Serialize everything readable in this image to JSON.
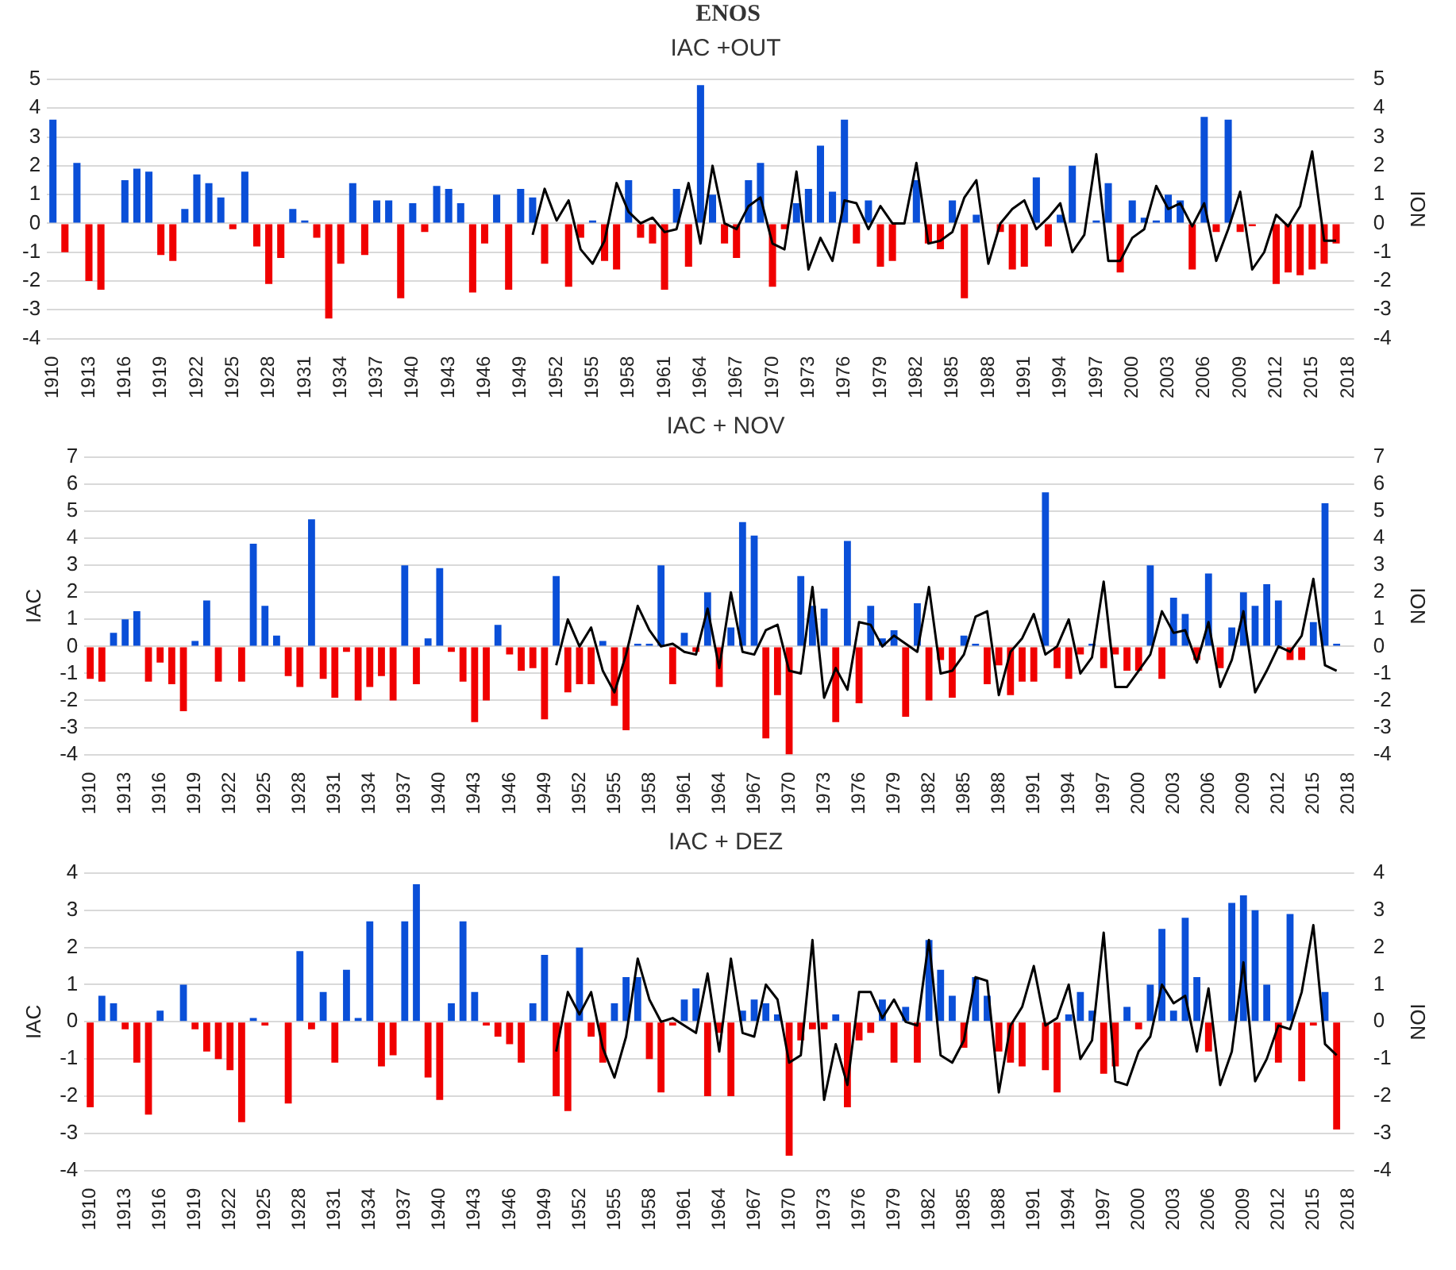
{
  "chart_data": [
    {
      "type": "bar",
      "title": "IAC +OUT",
      "annotations": [
        "ENOS"
      ],
      "y2label": "ION",
      "grid": "y",
      "marker": "none",
      "categories": [
        "1910",
        null,
        null,
        "1913",
        null,
        null,
        "1916",
        null,
        null,
        "1919",
        null,
        null,
        "1922",
        null,
        null,
        "1925",
        null,
        null,
        "1928",
        null,
        null,
        "1931",
        null,
        null,
        "1934",
        null,
        null,
        "1937",
        null,
        null,
        "1940",
        null,
        null,
        "1943",
        null,
        null,
        "1946",
        null,
        null,
        "1949",
        null,
        null,
        "1952",
        null,
        null,
        "1955",
        null,
        null,
        "1958",
        null,
        null,
        "1961",
        null,
        null,
        "1964",
        null,
        null,
        "1967",
        null,
        null,
        "1970",
        null,
        null,
        "1973",
        null,
        null,
        "1976",
        null,
        null,
        "1979",
        null,
        null,
        "1982",
        null,
        null,
        "1985",
        null,
        null,
        "1988",
        null,
        null,
        "1991",
        null,
        null,
        "1994",
        null,
        null,
        "1997",
        null,
        null,
        "2000",
        null,
        null,
        "2003",
        null,
        null,
        "2006",
        null,
        null,
        "2009",
        null,
        null,
        "2012",
        null,
        null,
        "2015",
        null,
        null,
        "2018"
      ],
      "ylim": [
        -4,
        5
      ],
      "yticks": [
        -4,
        -3,
        -2,
        -1,
        0,
        1,
        2,
        3,
        4,
        5
      ],
      "y2lim": [
        -4,
        5
      ],
      "y2ticks": [
        -4,
        -3,
        -2,
        -1,
        0,
        1,
        2,
        3,
        4,
        5
      ],
      "series": [
        {
          "values": [
            3.6,
            -1.0,
            2.1,
            -2.0,
            -2.3,
            0,
            1.5,
            1.9,
            1.8,
            -1.1,
            -1.3,
            0.5,
            1.7,
            1.4,
            0.9,
            -0.2,
            1.8,
            -0.8,
            -2.1,
            -1.2,
            0.5,
            0.1,
            -0.5,
            -3.3,
            -1.4,
            1.4,
            -1.1,
            0.8,
            0.8,
            -2.6,
            0.7,
            -0.3,
            1.3,
            1.2,
            0.7,
            -2.4,
            -0.7,
            1.0,
            -2.3,
            1.2,
            0.9,
            -1.4,
            0,
            -2.2,
            -0.5,
            0.1,
            -1.3,
            -1.6,
            1.5,
            -0.5,
            -0.7,
            -2.3,
            1.2,
            -1.5,
            4.8,
            1.0,
            -0.7,
            -1.2,
            1.5,
            2.1,
            -2.2,
            -0.2,
            0.7,
            1.2,
            2.7,
            1.1,
            3.6,
            -0.7,
            0.8,
            -1.5,
            -1.3,
            0,
            1.5,
            -0.7,
            -0.9,
            0.8,
            -2.6,
            0.3,
            0,
            -0.3,
            -1.6,
            -1.5,
            1.6,
            -0.8,
            0.3,
            2.0,
            0,
            0.1,
            1.4,
            -1.7,
            0.8,
            0.2,
            0.1,
            1.0,
            0.8,
            -1.6,
            3.7,
            -0.3,
            3.6,
            -0.3,
            -0.1,
            0,
            -2.1,
            -1.7,
            -1.8,
            -1.6,
            -1.4,
            -0.7,
            null
          ],
          "colors": [
            "#0a4fd8",
            "#f00000",
            "#0a4fd8",
            "#f00000",
            "#f00000",
            "#0a4fd8",
            "#0a4fd8",
            "#0a4fd8",
            "#0a4fd8",
            "#f00000",
            "#f00000",
            "#0a4fd8",
            "#0a4fd8",
            "#0a4fd8",
            "#0a4fd8",
            "#f00000",
            "#0a4fd8",
            "#f00000",
            "#f00000",
            "#f00000",
            "#0a4fd8",
            "#0a4fd8",
            "#f00000",
            "#f00000",
            "#f00000",
            "#0a4fd8",
            "#f00000",
            "#0a4fd8",
            "#0a4fd8",
            "#f00000",
            "#0a4fd8",
            "#f00000",
            "#0a4fd8",
            "#0a4fd8",
            "#0a4fd8",
            "#f00000",
            "#f00000",
            "#0a4fd8",
            "#f00000",
            "#0a4fd8",
            "#0a4fd8",
            "#f00000",
            "#0a4fd8",
            "#f00000",
            "#f00000",
            "#0a4fd8",
            "#f00000",
            "#f00000",
            "#0a4fd8",
            "#f00000",
            "#f00000",
            "#f00000",
            "#0a4fd8",
            "#f00000",
            "#0a4fd8",
            "#0a4fd8",
            "#f00000",
            "#f00000",
            "#0a4fd8",
            "#0a4fd8",
            "#f00000",
            "#f00000",
            "#0a4fd8",
            "#0a4fd8",
            "#0a4fd8",
            "#0a4fd8",
            "#0a4fd8",
            "#f00000",
            "#0a4fd8",
            "#f00000",
            "#f00000",
            "#0a4fd8",
            "#0a4fd8",
            "#f00000",
            "#f00000",
            "#0a4fd8",
            "#f00000",
            "#0a4fd8",
            "#0a4fd8",
            "#f00000",
            "#f00000",
            "#f00000",
            "#0a4fd8",
            "#f00000",
            "#0a4fd8",
            "#0a4fd8",
            "#0a4fd8",
            "#0a4fd8",
            "#0a4fd8",
            "#f00000",
            "#0a4fd8",
            "#0a4fd8",
            "#0a4fd8",
            "#0a4fd8",
            "#0a4fd8",
            "#f00000",
            "#0a4fd8",
            "#f00000",
            "#0a4fd8",
            "#f00000",
            "#f00000",
            "#0a4fd8",
            "#f00000",
            "#f00000",
            "#f00000",
            "#f00000",
            "#f00000",
            "#f00000",
            "#0a4fd8"
          ]
        },
        {
          "type": "line",
          "axis": "y2",
          "color": "#000000",
          "values": [
            null,
            null,
            null,
            null,
            null,
            null,
            null,
            null,
            null,
            null,
            null,
            null,
            null,
            null,
            null,
            null,
            null,
            null,
            null,
            null,
            null,
            null,
            null,
            null,
            null,
            null,
            null,
            null,
            null,
            null,
            null,
            null,
            null,
            null,
            null,
            null,
            null,
            null,
            null,
            null,
            -0.4,
            1.2,
            0.1,
            0.8,
            -0.9,
            -1.4,
            -0.6,
            1.4,
            0.4,
            0,
            0.2,
            -0.3,
            -0.2,
            1.4,
            -0.7,
            2.0,
            0,
            -0.2,
            0.6,
            0.9,
            -0.7,
            -0.9,
            1.8,
            -1.6,
            -0.5,
            -1.3,
            0.8,
            0.7,
            -0.2,
            0.6,
            0,
            0,
            2.1,
            -0.7,
            -0.6,
            -0.3,
            0.9,
            1.5,
            -1.4,
            0,
            0.5,
            0.8,
            -0.2,
            0.2,
            0.7,
            -1.0,
            -0.4,
            2.4,
            -1.3,
            -1.3,
            -0.5,
            -0.2,
            1.3,
            0.5,
            0.7,
            -0.1,
            0.7,
            -1.3,
            -0.2,
            1.1,
            -1.6,
            -1.0,
            0.3,
            -0.1,
            0.6,
            2.5,
            -0.6,
            -0.6,
            null
          ]
        }
      ]
    },
    {
      "type": "bar",
      "title": "IAC + NOV",
      "ylabel": "IAC",
      "y2label": "ION",
      "grid": "y",
      "marker": "none",
      "categories": [
        "1910",
        null,
        null,
        "1913",
        null,
        null,
        "1916",
        null,
        null,
        "1919",
        null,
        null,
        "1922",
        null,
        null,
        "1925",
        null,
        null,
        "1928",
        null,
        null,
        "1931",
        null,
        null,
        "1934",
        null,
        null,
        "1937",
        null,
        null,
        "1940",
        null,
        null,
        "1943",
        null,
        null,
        "1946",
        null,
        null,
        "1949",
        null,
        null,
        "1952",
        null,
        null,
        "1955",
        null,
        null,
        "1958",
        null,
        null,
        "1961",
        null,
        null,
        "1964",
        null,
        null,
        "1967",
        null,
        null,
        "1970",
        null,
        null,
        "1973",
        null,
        null,
        "1976",
        null,
        null,
        "1979",
        null,
        null,
        "1982",
        null,
        null,
        "1985",
        null,
        null,
        "1988",
        null,
        null,
        "1991",
        null,
        null,
        "1994",
        null,
        null,
        "1997",
        null,
        null,
        "2000",
        null,
        null,
        "2003",
        null,
        null,
        "2006",
        null,
        null,
        "2009",
        null,
        null,
        "2012",
        null,
        null,
        "2015",
        null,
        null,
        "2018"
      ],
      "ylim": [
        -4,
        7
      ],
      "yticks": [
        -4,
        -3,
        -2,
        -1,
        0,
        1,
        2,
        3,
        4,
        5,
        6,
        7
      ],
      "y2lim": [
        -4,
        7
      ],
      "y2ticks": [
        -4,
        -3,
        -2,
        -1,
        0,
        1,
        2,
        3,
        4,
        5,
        6,
        7
      ],
      "series": [
        {
          "values": [
            -1.2,
            -1.3,
            0.5,
            1.0,
            1.3,
            -1.3,
            -0.6,
            -1.4,
            -2.4,
            0.2,
            1.7,
            -1.3,
            0,
            -1.3,
            3.8,
            1.5,
            0.4,
            -1.1,
            -1.5,
            4.7,
            -1.2,
            -1.9,
            -0.2,
            -2.0,
            -1.5,
            -1.1,
            -2.0,
            3.0,
            -1.4,
            0.3,
            2.9,
            -0.2,
            -1.3,
            -2.8,
            -2.0,
            0.8,
            -0.3,
            -0.9,
            -0.8,
            -2.7,
            2.6,
            -1.7,
            -1.4,
            -1.4,
            0.2,
            -2.2,
            -3.1,
            0.1,
            0.1,
            3.0,
            -1.4,
            0.5,
            -0.2,
            2.0,
            -1.5,
            0.7,
            4.6,
            4.1,
            -3.4,
            -1.8,
            -4.0,
            2.6,
            1.5,
            1.4,
            -2.8,
            3.9,
            -2.1,
            1.5,
            0.3,
            0.6,
            -2.6,
            1.6,
            -2.0,
            -0.5,
            -1.9,
            0.4,
            0.1,
            -1.4,
            -0.7,
            -1.8,
            -1.3,
            -1.3,
            5.7,
            -0.8,
            -1.2,
            -0.3,
            0.1,
            -0.8,
            -0.3,
            -0.9,
            -0.9,
            3.0,
            -1.2,
            1.8,
            1.2,
            -0.5,
            2.7,
            -0.8,
            0.7,
            2.0,
            1.5,
            2.3,
            1.7,
            -0.5,
            -0.5,
            0.9,
            5.3,
            0.1,
            null
          ],
          "colors": [
            "#f00000",
            "#f00000",
            "#0a4fd8",
            "#0a4fd8",
            "#0a4fd8",
            "#f00000",
            "#f00000",
            "#f00000",
            "#f00000",
            "#0a4fd8",
            "#0a4fd8",
            "#f00000",
            "#0a4fd8",
            "#f00000",
            "#0a4fd8",
            "#0a4fd8",
            "#0a4fd8",
            "#f00000",
            "#f00000",
            "#0a4fd8",
            "#f00000",
            "#f00000",
            "#f00000",
            "#f00000",
            "#f00000",
            "#f00000",
            "#f00000",
            "#0a4fd8",
            "#f00000",
            "#0a4fd8",
            "#0a4fd8",
            "#f00000",
            "#f00000",
            "#f00000",
            "#f00000",
            "#0a4fd8",
            "#f00000",
            "#f00000",
            "#f00000",
            "#f00000",
            "#0a4fd8",
            "#f00000",
            "#f00000",
            "#f00000",
            "#0a4fd8",
            "#f00000",
            "#f00000",
            "#0a4fd8",
            "#0a4fd8",
            "#0a4fd8",
            "#f00000",
            "#0a4fd8",
            "#f00000",
            "#0a4fd8",
            "#f00000",
            "#0a4fd8",
            "#0a4fd8",
            "#0a4fd8",
            "#f00000",
            "#f00000",
            "#f00000",
            "#0a4fd8",
            "#0a4fd8",
            "#0a4fd8",
            "#f00000",
            "#0a4fd8",
            "#f00000",
            "#0a4fd8",
            "#0a4fd8",
            "#0a4fd8",
            "#f00000",
            "#0a4fd8",
            "#f00000",
            "#f00000",
            "#f00000",
            "#0a4fd8",
            "#0a4fd8",
            "#f00000",
            "#f00000",
            "#f00000",
            "#f00000",
            "#f00000",
            "#0a4fd8",
            "#f00000",
            "#f00000",
            "#f00000",
            "#0a4fd8",
            "#f00000",
            "#f00000",
            "#f00000",
            "#f00000",
            "#0a4fd8",
            "#f00000",
            "#0a4fd8",
            "#0a4fd8",
            "#f00000",
            "#0a4fd8",
            "#f00000",
            "#0a4fd8",
            "#0a4fd8",
            "#0a4fd8",
            "#0a4fd8",
            "#0a4fd8",
            "#f00000",
            "#f00000",
            "#0a4fd8",
            "#0a4fd8",
            "#0a4fd8",
            "#0a4fd8"
          ]
        },
        {
          "type": "line",
          "axis": "y2",
          "color": "#000000",
          "values": [
            null,
            null,
            null,
            null,
            null,
            null,
            null,
            null,
            null,
            null,
            null,
            null,
            null,
            null,
            null,
            null,
            null,
            null,
            null,
            null,
            null,
            null,
            null,
            null,
            null,
            null,
            null,
            null,
            null,
            null,
            null,
            null,
            null,
            null,
            null,
            null,
            null,
            null,
            null,
            null,
            -0.7,
            1.0,
            0,
            0.7,
            -0.9,
            -1.7,
            -0.3,
            1.5,
            0.6,
            0,
            0.1,
            -0.2,
            -0.3,
            1.4,
            -0.8,
            2.0,
            -0.2,
            -0.3,
            0.6,
            0.8,
            -0.9,
            -1.0,
            2.2,
            -1.9,
            -0.8,
            -1.6,
            0.9,
            0.8,
            0,
            0.4,
            0.1,
            -0.2,
            2.2,
            -1.0,
            -0.9,
            -0.3,
            1.1,
            1.3,
            -1.8,
            -0.2,
            0.3,
            1.2,
            -0.3,
            0,
            1.0,
            -1.0,
            -0.4,
            2.4,
            -1.5,
            -1.5,
            -0.9,
            -0.3,
            1.3,
            0.5,
            0.6,
            -0.6,
            0.9,
            -1.5,
            -0.5,
            1.3,
            -1.7,
            -0.9,
            0,
            -0.2,
            0.4,
            2.5,
            -0.7,
            -0.9,
            null
          ]
        }
      ]
    },
    {
      "type": "bar",
      "title": "IAC + DEZ",
      "ylabel": "IAC",
      "y2label": "ION",
      "grid": "y",
      "marker": "none",
      "categories": [
        "1910",
        null,
        null,
        "1913",
        null,
        null,
        "1916",
        null,
        null,
        "1919",
        null,
        null,
        "1922",
        null,
        null,
        "1925",
        null,
        null,
        "1928",
        null,
        null,
        "1931",
        null,
        null,
        "1934",
        null,
        null,
        "1937",
        null,
        null,
        "1940",
        null,
        null,
        "1943",
        null,
        null,
        "1946",
        null,
        null,
        "1949",
        null,
        null,
        "1952",
        null,
        null,
        "1955",
        null,
        null,
        "1958",
        null,
        null,
        "1961",
        null,
        null,
        "1964",
        null,
        null,
        "1967",
        null,
        null,
        "1970",
        null,
        null,
        "1973",
        null,
        null,
        "1976",
        null,
        null,
        "1979",
        null,
        null,
        "1982",
        null,
        null,
        "1985",
        null,
        null,
        "1988",
        null,
        null,
        "1991",
        null,
        null,
        "1994",
        null,
        null,
        "1997",
        null,
        null,
        "2000",
        null,
        null,
        "2003",
        null,
        null,
        "2006",
        null,
        null,
        "2009",
        null,
        null,
        "2012",
        null,
        null,
        "2015",
        null,
        null,
        "2018"
      ],
      "ylim": [
        -4,
        4
      ],
      "yticks": [
        -4,
        -3,
        -2,
        -1,
        0,
        1,
        2,
        3,
        4
      ],
      "y2lim": [
        -4,
        4
      ],
      "y2ticks": [
        -4,
        -3,
        -2,
        -1,
        0,
        1,
        2,
        3,
        4
      ],
      "series": [
        {
          "values": [
            -2.3,
            0.7,
            0.5,
            -0.2,
            -1.1,
            -2.5,
            0.3,
            0,
            1.0,
            -0.2,
            -0.8,
            -1.0,
            -1.3,
            -2.7,
            0.1,
            -0.1,
            0,
            -2.2,
            1.9,
            -0.2,
            0.8,
            -1.1,
            1.4,
            0.1,
            2.7,
            -1.2,
            -0.9,
            2.7,
            3.7,
            -1.5,
            -2.1,
            0.5,
            2.7,
            0.8,
            -0.1,
            -0.4,
            -0.6,
            -1.1,
            0.5,
            1.8,
            -2.0,
            -2.4,
            2.0,
            -0.4,
            -1.1,
            0.5,
            1.2,
            1.2,
            -1.0,
            -1.9,
            -0.1,
            0.6,
            0.9,
            -2.0,
            -0.3,
            -2.0,
            0.3,
            0.6,
            0.5,
            0.2,
            -3.6,
            -0.5,
            -0.2,
            -0.2,
            0.2,
            -2.3,
            -0.5,
            -0.3,
            0.6,
            -1.1,
            0.4,
            -1.1,
            2.2,
            1.4,
            0.7,
            -0.7,
            1.2,
            0.7,
            -0.8,
            -1.1,
            -1.2,
            0,
            -1.3,
            -1.9,
            0.2,
            0.8,
            0.3,
            -1.4,
            -1.2,
            0.4,
            -0.2,
            1.0,
            2.5,
            0.3,
            2.8,
            1.2,
            -0.8,
            0,
            3.2,
            3.4,
            3.0,
            1.0,
            -1.1,
            2.9,
            -1.6,
            -0.1,
            0.8,
            -2.9,
            null
          ],
          "colors": [
            "#f00000",
            "#0a4fd8",
            "#0a4fd8",
            "#f00000",
            "#f00000",
            "#f00000",
            "#0a4fd8",
            "#0a4fd8",
            "#0a4fd8",
            "#f00000",
            "#f00000",
            "#f00000",
            "#f00000",
            "#f00000",
            "#0a4fd8",
            "#f00000",
            "#0a4fd8",
            "#f00000",
            "#0a4fd8",
            "#f00000",
            "#0a4fd8",
            "#f00000",
            "#0a4fd8",
            "#0a4fd8",
            "#0a4fd8",
            "#f00000",
            "#f00000",
            "#0a4fd8",
            "#0a4fd8",
            "#f00000",
            "#f00000",
            "#0a4fd8",
            "#0a4fd8",
            "#0a4fd8",
            "#f00000",
            "#f00000",
            "#f00000",
            "#f00000",
            "#0a4fd8",
            "#0a4fd8",
            "#f00000",
            "#f00000",
            "#0a4fd8",
            "#f00000",
            "#f00000",
            "#0a4fd8",
            "#0a4fd8",
            "#0a4fd8",
            "#f00000",
            "#f00000",
            "#f00000",
            "#0a4fd8",
            "#0a4fd8",
            "#f00000",
            "#f00000",
            "#f00000",
            "#0a4fd8",
            "#0a4fd8",
            "#0a4fd8",
            "#0a4fd8",
            "#f00000",
            "#f00000",
            "#f00000",
            "#f00000",
            "#0a4fd8",
            "#f00000",
            "#f00000",
            "#f00000",
            "#0a4fd8",
            "#f00000",
            "#0a4fd8",
            "#f00000",
            "#0a4fd8",
            "#0a4fd8",
            "#0a4fd8",
            "#f00000",
            "#0a4fd8",
            "#0a4fd8",
            "#f00000",
            "#f00000",
            "#f00000",
            "#0a4fd8",
            "#f00000",
            "#f00000",
            "#0a4fd8",
            "#0a4fd8",
            "#0a4fd8",
            "#f00000",
            "#f00000",
            "#0a4fd8",
            "#f00000",
            "#0a4fd8",
            "#0a4fd8",
            "#0a4fd8",
            "#0a4fd8",
            "#0a4fd8",
            "#f00000",
            "#0a4fd8",
            "#0a4fd8",
            "#0a4fd8",
            "#0a4fd8",
            "#0a4fd8",
            "#f00000",
            "#0a4fd8",
            "#f00000",
            "#f00000",
            "#0a4fd8",
            "#f00000",
            "#0a4fd8"
          ]
        },
        {
          "type": "line",
          "axis": "y2",
          "color": "#000000",
          "values": [
            null,
            null,
            null,
            null,
            null,
            null,
            null,
            null,
            null,
            null,
            null,
            null,
            null,
            null,
            null,
            null,
            null,
            null,
            null,
            null,
            null,
            null,
            null,
            null,
            null,
            null,
            null,
            null,
            null,
            null,
            null,
            null,
            null,
            null,
            null,
            null,
            null,
            null,
            null,
            null,
            -0.8,
            0.8,
            0.2,
            0.8,
            -0.7,
            -1.5,
            -0.4,
            1.7,
            0.6,
            0,
            0.1,
            -0.1,
            -0.3,
            1.3,
            -0.8,
            1.7,
            -0.3,
            -0.4,
            1.0,
            0.6,
            -1.1,
            -0.9,
            2.2,
            -2.1,
            -0.6,
            -1.7,
            0.8,
            0.8,
            0.1,
            0.6,
            0,
            -0.1,
            2.2,
            -0.9,
            -1.1,
            -0.5,
            1.2,
            1.1,
            -1.9,
            -0.1,
            0.4,
            1.5,
            -0.1,
            0.1,
            1.0,
            -1.0,
            -0.5,
            2.4,
            -1.6,
            -1.7,
            -0.8,
            -0.4,
            1.0,
            0.5,
            0.7,
            -0.8,
            0.9,
            -1.7,
            -0.8,
            1.6,
            -1.6,
            -1.0,
            -0.1,
            -0.2,
            0.8,
            2.6,
            -0.6,
            -0.9,
            null
          ]
        }
      ]
    }
  ]
}
